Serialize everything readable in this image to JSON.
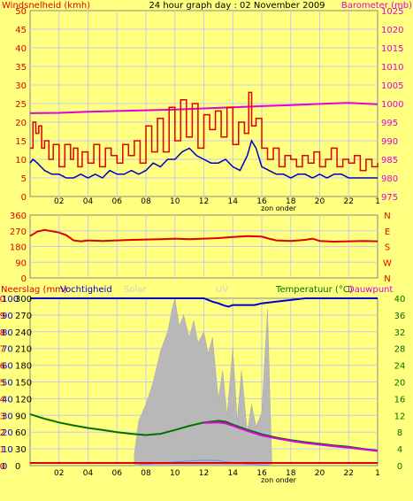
{
  "title": "24 hour graph day : 02 November 2009",
  "colors": {
    "background": "#ffff80",
    "frame": "#8a8a8a",
    "grid": "#c8c8f0",
    "wind_gust": "#e00000",
    "wind_avg": "#0000c0",
    "barometer": "#e000e0",
    "direction": "#e00000",
    "rain": "#e00000",
    "humidity": "#0000c8",
    "solar": "#b8b8b8",
    "uv": "#6a8cff",
    "temperature": "#007000",
    "dewpoint": "#e000e0"
  },
  "x_tick_labels": [
    "02",
    "04",
    "06",
    "08",
    "10",
    "12",
    "14",
    "16",
    "18",
    "20",
    "22",
    "1"
  ],
  "sunset_label": "zon onder",
  "chart_data": [
    {
      "type": "line",
      "panel": "wind-barometer",
      "left_axis_label": "Windsnelheid (kmh)",
      "right_axis_label": "Barometer (mb)",
      "left_ticks": [
        0,
        5,
        10,
        15,
        20,
        25,
        30,
        35,
        40,
        45,
        50
      ],
      "right_ticks": [
        975,
        980,
        985,
        990,
        995,
        1000,
        1005,
        1010,
        1015,
        1020,
        1025
      ],
      "ylim_left": [
        0,
        50
      ],
      "ylim_right": [
        975,
        1025
      ],
      "xlim_hours": [
        0,
        24
      ],
      "grid": true,
      "series": [
        {
          "key": "gust",
          "axis": "left",
          "x": [
            0,
            0.2,
            0.4,
            0.6,
            0.8,
            1,
            1.3,
            1.6,
            2,
            2.4,
            2.8,
            3,
            3.3,
            3.6,
            4,
            4.4,
            4.8,
            5.2,
            5.6,
            6,
            6.4,
            6.8,
            7.2,
            7.6,
            8,
            8.4,
            8.8,
            9.2,
            9.6,
            10,
            10.4,
            10.8,
            11.2,
            11.6,
            12,
            12.4,
            12.8,
            13.2,
            13.6,
            14,
            14.4,
            14.8,
            15.1,
            15.3,
            15.6,
            16,
            16.4,
            16.8,
            17.2,
            17.6,
            18,
            18.4,
            18.8,
            19.2,
            19.6,
            20,
            20.4,
            20.8,
            21.2,
            21.6,
            22,
            22.4,
            22.8,
            23.2,
            23.6,
            24
          ],
          "values": [
            13,
            20,
            17,
            19,
            13,
            15,
            10,
            14,
            8,
            14,
            10,
            13,
            8,
            12,
            9,
            14,
            8,
            13,
            11,
            9,
            14,
            11,
            15,
            9,
            19,
            12,
            21,
            12,
            24,
            15,
            26,
            16,
            25,
            13,
            22,
            18,
            23,
            16,
            24,
            14,
            20,
            17,
            28,
            19,
            21,
            13,
            10,
            13,
            8,
            11,
            10,
            8,
            11,
            9,
            12,
            8,
            10,
            13,
            8,
            10,
            9,
            11,
            7,
            10,
            8,
            9
          ]
        },
        {
          "key": "average",
          "axis": "left",
          "x": [
            0,
            0.2,
            0.5,
            1,
            1.5,
            2,
            2.5,
            3,
            3.5,
            4,
            4.5,
            5,
            5.5,
            6,
            6.5,
            7,
            7.5,
            8,
            8.5,
            9,
            9.5,
            10,
            10.5,
            11,
            11.5,
            12,
            12.5,
            13,
            13.5,
            14,
            14.5,
            15,
            15.3,
            15.6,
            16,
            16.5,
            17,
            17.5,
            18,
            18.5,
            19,
            19.5,
            20,
            20.5,
            21,
            21.5,
            22,
            22.5,
            23,
            23.5,
            24
          ],
          "values": [
            9,
            10,
            9,
            7,
            6,
            6,
            5,
            5,
            6,
            5,
            6,
            5,
            7,
            6,
            6,
            7,
            6,
            7,
            9,
            8,
            10,
            10,
            12,
            13,
            11,
            10,
            9,
            9,
            10,
            8,
            7,
            11,
            15,
            13,
            8,
            7,
            6,
            6,
            5,
            6,
            6,
            5,
            6,
            5,
            6,
            6,
            5,
            5,
            5,
            5,
            5
          ]
        },
        {
          "key": "barometer",
          "axis": "right",
          "x": [
            0,
            2,
            4,
            6,
            8,
            10,
            12,
            14,
            16,
            18,
            20,
            22,
            24
          ],
          "values": [
            997.4,
            997.5,
            997.8,
            998.0,
            998.2,
            998.4,
            998.7,
            999.0,
            999.3,
            999.6,
            999.9,
            1000.2,
            999.8
          ]
        }
      ]
    },
    {
      "type": "line",
      "panel": "wind-direction",
      "left_ticks": [
        0,
        90,
        180,
        270,
        360
      ],
      "right_ticks": [
        "N",
        "W",
        "S",
        "E",
        "N"
      ],
      "ylim": [
        0,
        360
      ],
      "xlim_hours": [
        0,
        24
      ],
      "grid": true,
      "series": [
        {
          "key": "direction",
          "x": [
            0,
            0.5,
            1,
            2,
            2.5,
            3,
            3.5,
            4,
            5,
            6,
            7,
            8,
            9,
            10,
            11,
            12,
            13,
            14,
            15,
            16,
            16.5,
            17,
            18,
            19,
            19.5,
            20,
            21,
            22,
            23,
            24
          ],
          "values": [
            240,
            265,
            275,
            260,
            245,
            215,
            210,
            215,
            212,
            215,
            218,
            220,
            222,
            225,
            222,
            225,
            228,
            235,
            240,
            237,
            225,
            215,
            212,
            218,
            225,
            212,
            208,
            210,
            212,
            210
          ]
        }
      ]
    },
    {
      "type": "line",
      "panel": "rain-humidity-solar-temperature",
      "left_axis_label": "Neerslag (mm)",
      "humidity_label": "Vochtigheid",
      "solar_label": "Solar",
      "uv_label": "UV",
      "right_axis_label": "Temperatuur (°C)",
      "dewpoint_label": "Dauwpunt",
      "rain_ticks": [
        0,
        1,
        2,
        3,
        4,
        5,
        6,
        7,
        8,
        9,
        10
      ],
      "humidity_ticks": [
        0,
        10,
        20,
        30,
        40,
        50,
        60,
        70,
        80,
        90,
        100
      ],
      "solar_ticks": [
        0,
        30,
        60,
        90,
        120,
        150,
        180,
        210,
        240,
        270,
        300
      ],
      "temp_ticks": [
        0,
        4,
        8,
        12,
        16,
        20,
        24,
        28,
        32,
        36,
        40
      ],
      "ylim_temp": [
        0,
        40
      ],
      "xlim_hours": [
        0,
        24
      ],
      "grid": true,
      "series": [
        {
          "key": "humidity",
          "x": [
            0,
            2,
            4,
            6,
            8,
            10,
            12,
            12.6,
            13,
            13.3,
            13.7,
            14,
            15,
            15.5,
            16,
            17,
            18,
            19,
            20,
            21,
            22,
            23,
            24
          ],
          "values": [
            100,
            100,
            100,
            100,
            100,
            100,
            100,
            98,
            97,
            96,
            95,
            96,
            96,
            96,
            97,
            98,
            99,
            100,
            100,
            100,
            100,
            100,
            100
          ]
        },
        {
          "key": "solar",
          "x": [
            7.2,
            7.5,
            8,
            8.5,
            9,
            9.5,
            9.8,
            10,
            10.3,
            10.6,
            11,
            11.3,
            11.6,
            12,
            12.3,
            12.6,
            13,
            13.3,
            13.6,
            14,
            14.3,
            14.6,
            15,
            15.3,
            15.6,
            16,
            16.4,
            16.7
          ],
          "values": [
            20,
            80,
            110,
            150,
            205,
            240,
            280,
            300,
            250,
            270,
            230,
            260,
            220,
            240,
            200,
            230,
            120,
            170,
            90,
            210,
            80,
            170,
            60,
            110,
            70,
            95,
            280,
            0
          ]
        },
        {
          "key": "uv",
          "x": [
            7.5,
            9,
            10,
            11,
            12,
            13,
            13.5,
            14,
            15,
            16.5
          ],
          "values": [
            0.2,
            0.6,
            0.9,
            1.1,
            1.3,
            1.2,
            0.9,
            0.7,
            0.4,
            0
          ]
        },
        {
          "key": "temperature",
          "x": [
            0,
            1,
            2,
            3,
            4,
            5,
            6,
            7,
            8,
            9,
            10,
            11,
            12,
            13,
            13.5,
            14,
            15,
            16,
            17,
            18,
            19,
            20,
            21,
            22,
            23,
            24
          ],
          "values": [
            12.3,
            11.2,
            10.3,
            9.6,
            9.0,
            8.5,
            8.0,
            7.6,
            7.3,
            7.6,
            8.5,
            9.5,
            10.3,
            10.7,
            10.5,
            9.8,
            8.6,
            7.5,
            6.7,
            6.1,
            5.6,
            5.2,
            4.8,
            4.5,
            4.0,
            3.6
          ]
        },
        {
          "key": "dewpoint",
          "x": [
            12,
            13,
            13.5,
            14,
            15,
            16,
            17,
            18,
            19,
            20,
            21,
            22,
            23,
            24
          ],
          "values": [
            10.2,
            10.3,
            10.1,
            9.5,
            8.3,
            7.2,
            6.5,
            5.9,
            5.4,
            5.0,
            4.6,
            4.3,
            3.9,
            3.5
          ]
        },
        {
          "key": "rain",
          "x": [
            0,
            24
          ],
          "values": [
            0,
            0
          ]
        }
      ]
    }
  ]
}
